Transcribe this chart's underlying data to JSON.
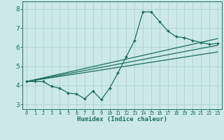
{
  "xlabel": "Humidex (Indice chaleur)",
  "ylabel": "",
  "xlim": [
    -0.5,
    23.5
  ],
  "ylim": [
    2.75,
    8.4
  ],
  "xticks": [
    0,
    1,
    2,
    3,
    4,
    5,
    6,
    7,
    8,
    9,
    10,
    11,
    12,
    13,
    14,
    15,
    16,
    17,
    18,
    19,
    20,
    21,
    22,
    23
  ],
  "yticks": [
    3,
    4,
    5,
    6,
    7,
    8
  ],
  "bg_color": "#cce8e8",
  "grid_color": "#aacccc",
  "line_color": "#1a6e60",
  "line1_x": [
    0,
    1,
    2,
    3,
    4,
    5,
    6,
    7,
    8,
    9,
    10,
    11,
    12,
    13,
    14,
    15,
    16,
    17,
    18,
    19,
    20,
    21,
    22,
    23
  ],
  "line1_y": [
    4.2,
    4.2,
    4.2,
    3.95,
    3.85,
    3.6,
    3.55,
    3.3,
    3.7,
    3.25,
    3.85,
    4.65,
    5.5,
    6.35,
    7.85,
    7.85,
    7.35,
    6.85,
    6.55,
    6.5,
    6.35,
    6.25,
    6.15,
    6.2
  ],
  "line2_x": [
    0,
    23
  ],
  "line2_y": [
    4.2,
    6.1
  ],
  "line3_x": [
    0,
    23
  ],
  "line3_y": [
    4.2,
    5.75
  ],
  "line4_x": [
    0,
    23
  ],
  "line4_y": [
    4.2,
    6.45
  ]
}
